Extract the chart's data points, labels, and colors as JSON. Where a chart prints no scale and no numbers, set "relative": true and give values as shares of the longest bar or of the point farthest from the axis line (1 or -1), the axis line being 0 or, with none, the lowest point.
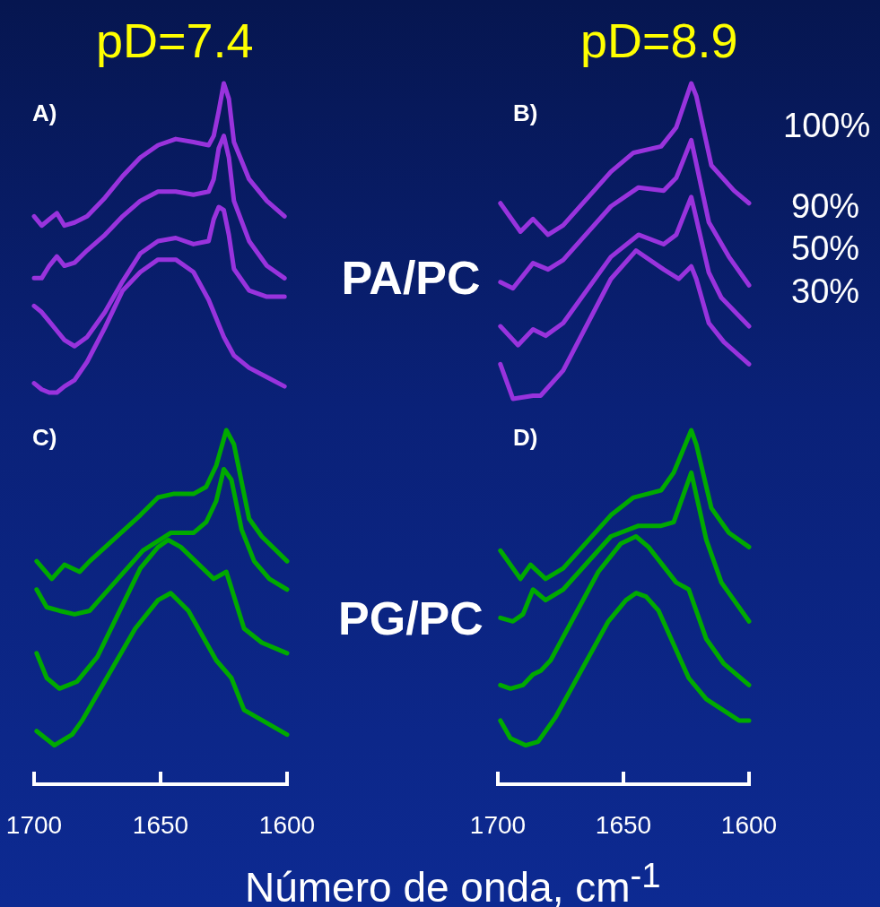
{
  "chart_data": [
    {
      "type": "line",
      "title": "pD=7.4",
      "annotations": [
        "A)",
        "PA/PC"
      ],
      "relative": true,
      "legend": false,
      "marker": "none",
      "tick_labels": false,
      "xlim": [
        1700,
        1600
      ],
      "xticks": [
        1700,
        1650,
        1600
      ],
      "series": [
        {
          "color": "#9933dd",
          "x": [
            1700,
            1697,
            1694,
            1691,
            1688,
            1684,
            1679,
            1672,
            1665,
            1658,
            1651,
            1644,
            1637,
            1631,
            1629,
            1627,
            1625,
            1623,
            1621,
            1615,
            1608,
            1601
          ],
          "values": [
            0.57,
            0.54,
            0.56,
            0.58,
            0.54,
            0.55,
            0.57,
            0.63,
            0.7,
            0.76,
            0.8,
            0.82,
            0.81,
            0.8,
            0.83,
            0.91,
            1.0,
            0.95,
            0.81,
            0.69,
            0.62,
            0.57
          ]
        },
        {
          "color": "#9933dd",
          "x": [
            1700,
            1697,
            1694,
            1691,
            1688,
            1684,
            1679,
            1672,
            1665,
            1658,
            1651,
            1644,
            1637,
            1631,
            1629,
            1627,
            1625,
            1623,
            1621,
            1615,
            1608,
            1601
          ],
          "values": [
            0.37,
            0.37,
            0.41,
            0.44,
            0.41,
            0.42,
            0.46,
            0.51,
            0.57,
            0.62,
            0.65,
            0.65,
            0.64,
            0.65,
            0.69,
            0.79,
            0.83,
            0.76,
            0.62,
            0.49,
            0.41,
            0.37
          ]
        },
        {
          "color": "#9933dd",
          "x": [
            1700,
            1697,
            1694,
            1691,
            1688,
            1684,
            1679,
            1672,
            1665,
            1658,
            1651,
            1644,
            1637,
            1631,
            1629,
            1627,
            1625,
            1623,
            1621,
            1615,
            1608,
            1601
          ],
          "values": [
            0.28,
            0.26,
            0.23,
            0.2,
            0.17,
            0.15,
            0.18,
            0.26,
            0.36,
            0.45,
            0.49,
            0.5,
            0.48,
            0.49,
            0.56,
            0.6,
            0.59,
            0.51,
            0.4,
            0.33,
            0.31,
            0.31
          ]
        },
        {
          "color": "#9933dd",
          "x": [
            1700,
            1697,
            1694,
            1691,
            1688,
            1684,
            1679,
            1672,
            1665,
            1658,
            1651,
            1644,
            1637,
            1631,
            1629,
            1627,
            1625,
            1623,
            1621,
            1615,
            1608,
            1601
          ],
          "values": [
            0.03,
            0.01,
            0,
            0,
            0.02,
            0.04,
            0.1,
            0.21,
            0.33,
            0.39,
            0.43,
            0.43,
            0.39,
            0.3,
            0.26,
            0.22,
            0.18,
            0.15,
            0.12,
            0.08,
            0.05,
            0.02
          ]
        }
      ]
    },
    {
      "type": "line",
      "title": "pD=8.9",
      "annotations": [
        "B)"
      ],
      "relative": true,
      "legend": false,
      "marker": "none",
      "tick_labels": false,
      "xlim": [
        1700,
        1600
      ],
      "xticks": [
        1700,
        1650,
        1600
      ],
      "series": [
        {
          "name": "100%",
          "color": "#9933dd",
          "x": [
            1699,
            1691,
            1686,
            1680,
            1674,
            1655,
            1646,
            1635,
            1629,
            1623,
            1621,
            1615,
            1606,
            1600
          ],
          "values": [
            0.62,
            0.53,
            0.57,
            0.52,
            0.55,
            0.72,
            0.78,
            0.8,
            0.86,
            1.0,
            0.96,
            0.74,
            0.66,
            0.62
          ]
        },
        {
          "name": "90%",
          "color": "#9933dd",
          "x": [
            1699,
            1694,
            1686,
            1680,
            1674,
            1655,
            1644,
            1634,
            1629,
            1623,
            1616,
            1608,
            1600
          ],
          "values": [
            0.37,
            0.35,
            0.43,
            0.41,
            0.44,
            0.61,
            0.67,
            0.66,
            0.7,
            0.82,
            0.56,
            0.45,
            0.36
          ]
        },
        {
          "name": "50%",
          "color": "#9933dd",
          "x": [
            1699,
            1692,
            1686,
            1681,
            1674,
            1655,
            1644,
            1634,
            1629,
            1623,
            1616,
            1611,
            1600
          ],
          "values": [
            0.23,
            0.17,
            0.22,
            0.2,
            0.24,
            0.45,
            0.52,
            0.49,
            0.52,
            0.64,
            0.4,
            0.32,
            0.23
          ]
        },
        {
          "name": "30%",
          "color": "#9933dd",
          "x": [
            1699,
            1694,
            1686,
            1683,
            1674,
            1655,
            1645,
            1634,
            1628,
            1623,
            1621,
            1616,
            1610,
            1600
          ],
          "values": [
            0.11,
            0,
            0.01,
            0.01,
            0.09,
            0.38,
            0.47,
            0.41,
            0.38,
            0.42,
            0.38,
            0.24,
            0.18,
            0.11
          ]
        }
      ]
    },
    {
      "type": "line",
      "annotations": [
        "C)",
        "PG/PC"
      ],
      "xlabel": "Número de onda, cm$^{-1}$",
      "relative": true,
      "legend": false,
      "marker": "none",
      "tick_labels": "x",
      "xlim": [
        1700,
        1600
      ],
      "xticks": [
        1700,
        1650,
        1600
      ],
      "series": [
        {
          "color": "#00aa00",
          "x": [
            1699,
            1693,
            1688,
            1682,
            1678,
            1658,
            1651,
            1645,
            1637,
            1632,
            1628,
            1624,
            1621,
            1615,
            1610,
            1600
          ],
          "values": [
            0.63,
            0.58,
            0.62,
            0.6,
            0.63,
            0.76,
            0.81,
            0.82,
            0.82,
            0.84,
            0.9,
            1.0,
            0.96,
            0.75,
            0.7,
            0.63
          ]
        },
        {
          "color": "#00aa00",
          "x": [
            1699,
            1695,
            1690,
            1684,
            1678,
            1657,
            1646,
            1637,
            1632,
            1628,
            1625,
            1622,
            1618,
            1613,
            1607,
            1600
          ],
          "values": [
            0.55,
            0.5,
            0.49,
            0.48,
            0.49,
            0.66,
            0.71,
            0.71,
            0.74,
            0.8,
            0.89,
            0.86,
            0.72,
            0.63,
            0.58,
            0.55
          ]
        },
        {
          "color": "#00aa00",
          "x": [
            1699,
            1695,
            1690,
            1683,
            1675,
            1658,
            1651,
            1647,
            1642,
            1629,
            1624,
            1617,
            1610,
            1600
          ],
          "values": [
            0.37,
            0.3,
            0.27,
            0.29,
            0.36,
            0.61,
            0.67,
            0.69,
            0.67,
            0.58,
            0.6,
            0.44,
            0.4,
            0.37
          ]
        },
        {
          "color": "#00aa00",
          "x": [
            1699,
            1692,
            1685,
            1681,
            1660,
            1651,
            1646,
            1639,
            1628,
            1622,
            1617,
            1600
          ],
          "values": [
            0.15,
            0.11,
            0.14,
            0.18,
            0.44,
            0.52,
            0.54,
            0.49,
            0.35,
            0.3,
            0.21,
            0.14
          ]
        }
      ]
    },
    {
      "type": "line",
      "annotations": [
        "D)"
      ],
      "relative": true,
      "legend": false,
      "marker": "none",
      "tick_labels": "x",
      "xlim": [
        1700,
        1600
      ],
      "xticks": [
        1700,
        1650,
        1600
      ],
      "series": [
        {
          "color": "#00aa00",
          "x": [
            1699,
            1691,
            1687,
            1681,
            1674,
            1655,
            1646,
            1635,
            1630,
            1623,
            1621,
            1615,
            1608,
            1600
          ],
          "values": [
            0.66,
            0.58,
            0.62,
            0.58,
            0.61,
            0.76,
            0.81,
            0.83,
            0.88,
            1.0,
            0.96,
            0.78,
            0.71,
            0.67
          ]
        },
        {
          "color": "#00aa00",
          "x": [
            1699,
            1694,
            1690,
            1686,
            1681,
            1674,
            1655,
            1644,
            1635,
            1630,
            1623,
            1617,
            1611,
            1600
          ],
          "values": [
            0.47,
            0.46,
            0.48,
            0.55,
            0.52,
            0.55,
            0.7,
            0.73,
            0.73,
            0.74,
            0.88,
            0.69,
            0.57,
            0.46
          ]
        },
        {
          "color": "#00aa00",
          "x": [
            1699,
            1695,
            1690,
            1686,
            1683,
            1679,
            1660,
            1651,
            1645,
            1640,
            1629,
            1624,
            1617,
            1610,
            1600
          ],
          "values": [
            0.28,
            0.27,
            0.28,
            0.31,
            0.32,
            0.35,
            0.6,
            0.68,
            0.7,
            0.67,
            0.57,
            0.55,
            0.41,
            0.34,
            0.28
          ]
        },
        {
          "color": "#00aa00",
          "x": [
            1699,
            1695,
            1689,
            1684,
            1677,
            1656,
            1649,
            1645,
            1641,
            1636,
            1624,
            1617,
            1604,
            1600
          ],
          "values": [
            0.18,
            0.13,
            0.11,
            0.12,
            0.19,
            0.46,
            0.52,
            0.54,
            0.53,
            0.49,
            0.3,
            0.24,
            0.18,
            0.18
          ]
        }
      ]
    }
  ]
}
